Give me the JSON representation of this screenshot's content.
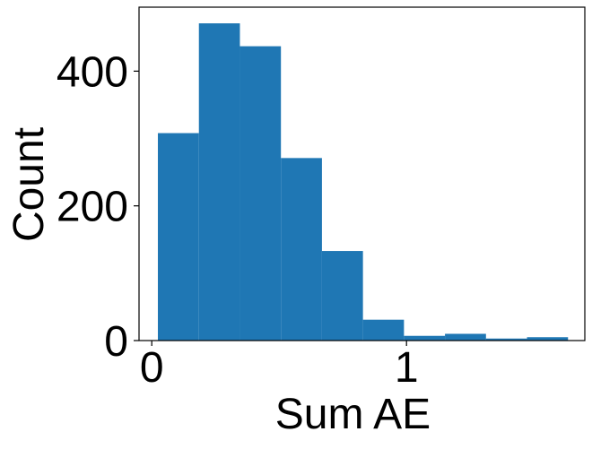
{
  "chart_data": {
    "type": "bar",
    "subtype": "histogram",
    "title": "",
    "xlabel": "Sum AE",
    "ylabel": "Count",
    "bin_edges": [
      0.024,
      0.185,
      0.346,
      0.507,
      0.668,
      0.829,
      0.99,
      1.151,
      1.312,
      1.473,
      1.634
    ],
    "counts": [
      308,
      471,
      437,
      271,
      133,
      31,
      7,
      10,
      3,
      5
    ],
    "xlim": [
      -0.05,
      1.7
    ],
    "ylim": [
      0,
      495
    ],
    "xticks": [
      {
        "value": 0,
        "label": "0"
      },
      {
        "value": 1,
        "label": "1"
      }
    ],
    "yticks": [
      {
        "value": 0,
        "label": "0"
      },
      {
        "value": 200,
        "label": "200"
      },
      {
        "value": 400,
        "label": "400"
      }
    ],
    "bar_color": "#1f77b4",
    "grid": false,
    "legend": false
  }
}
